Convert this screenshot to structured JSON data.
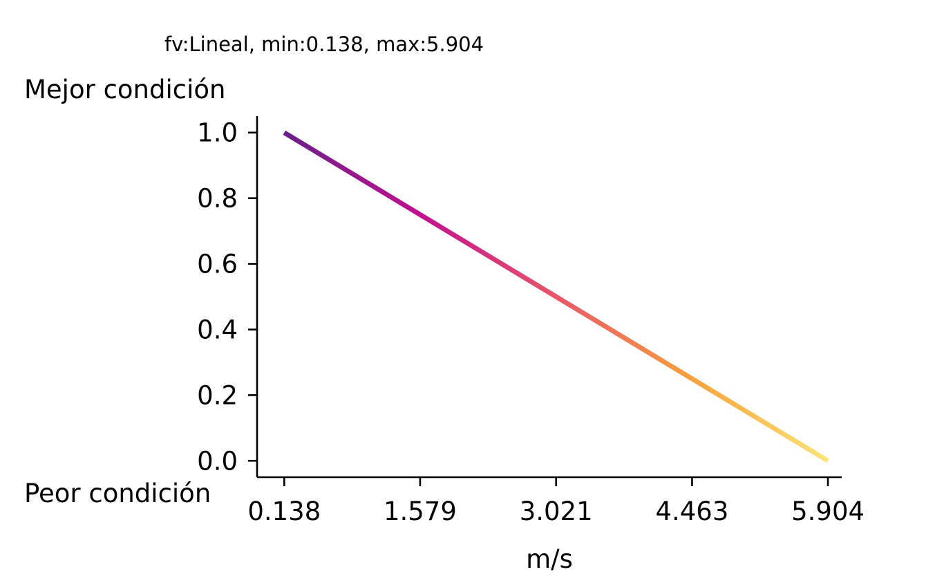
{
  "chart_data": {
    "type": "line",
    "title": "fv:Lineal, min:0.138, max:5.904",
    "xlabel": "m/s",
    "ylabel": "",
    "top_label": "Mejor condición",
    "bottom_label": "Peor condición",
    "x": [
      0.138,
      5.904
    ],
    "y": [
      1.0,
      0.0
    ],
    "xlim": [
      -0.15,
      6.05
    ],
    "ylim": [
      -0.05,
      1.05
    ],
    "xticks": [
      0.138,
      1.579,
      3.021,
      4.463,
      5.904
    ],
    "xtick_labels": [
      "0.138",
      "1.579",
      "3.021",
      "4.463",
      "5.904"
    ],
    "yticks": [
      0.0,
      0.2,
      0.4,
      0.6,
      0.8,
      1.0
    ],
    "ytick_labels": [
      "0.0",
      "0.2",
      "0.4",
      "0.6",
      "0.8",
      "1.0"
    ],
    "colormap": "plasma",
    "gradient_colors": [
      "#6a1f8a",
      "#c2118f",
      "#e8566a",
      "#f6a13c",
      "#fbe47a"
    ],
    "grid": false,
    "legend": "none"
  }
}
